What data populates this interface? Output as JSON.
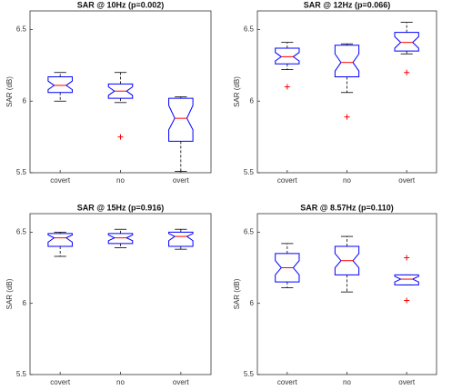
{
  "chart_data": [
    {
      "type": "box",
      "title": "SAR @ 10Hz (p=0.002)",
      "ylabel": "SAR (dB)",
      "categories": [
        "covert",
        "no",
        "overt"
      ],
      "ylim": [
        5.5,
        6.63
      ],
      "yticks": [
        5.5,
        6,
        6.5
      ],
      "box_color": "#0000ff",
      "median_color": "#ff0000",
      "outlier_color": "#ff0000",
      "boxes": [
        {
          "whisker_low": 6.0,
          "q1": 6.06,
          "median": 6.11,
          "q3": 6.17,
          "whisker_high": 6.2,
          "notch_low": 6.08,
          "notch_high": 6.14,
          "outliers": []
        },
        {
          "whisker_low": 5.99,
          "q1": 6.02,
          "median": 6.07,
          "q3": 6.12,
          "whisker_high": 6.2,
          "notch_low": 6.04,
          "notch_high": 6.1,
          "outliers": [
            5.75
          ]
        },
        {
          "whisker_low": 5.51,
          "q1": 5.72,
          "median": 5.88,
          "q3": 6.02,
          "whisker_high": 6.03,
          "notch_low": 5.8,
          "notch_high": 5.97,
          "outliers": []
        }
      ]
    },
    {
      "type": "box",
      "title": "SAR @ 12Hz (p=0.066)",
      "ylabel": "SAR (dB)",
      "categories": [
        "covert",
        "no",
        "overt"
      ],
      "ylim": [
        5.5,
        6.63
      ],
      "yticks": [
        5.5,
        6,
        6.5
      ],
      "box_color": "#0000ff",
      "median_color": "#ff0000",
      "outlier_color": "#ff0000",
      "boxes": [
        {
          "whisker_low": 6.22,
          "q1": 6.26,
          "median": 6.31,
          "q3": 6.37,
          "whisker_high": 6.41,
          "notch_low": 6.28,
          "notch_high": 6.34,
          "outliers": [
            6.1
          ]
        },
        {
          "whisker_low": 6.06,
          "q1": 6.17,
          "median": 6.27,
          "q3": 6.39,
          "whisker_high": 6.4,
          "notch_low": 6.21,
          "notch_high": 6.33,
          "outliers": [
            5.89
          ]
        },
        {
          "whisker_low": 6.33,
          "q1": 6.35,
          "median": 6.41,
          "q3": 6.48,
          "whisker_high": 6.55,
          "notch_low": 6.37,
          "notch_high": 6.45,
          "outliers": [
            6.2
          ]
        }
      ]
    },
    {
      "type": "box",
      "title": "SAR @ 15Hz (p=0.916)",
      "ylabel": "SAR (dB)",
      "categories": [
        "covert",
        "no",
        "overt"
      ],
      "ylim": [
        5.5,
        6.63
      ],
      "yticks": [
        5.5,
        6,
        6.5
      ],
      "box_color": "#0000ff",
      "median_color": "#ff0000",
      "outlier_color": "#ff0000",
      "boxes": [
        {
          "whisker_low": 6.33,
          "q1": 6.4,
          "median": 6.46,
          "q3": 6.49,
          "whisker_high": 6.5,
          "notch_low": 6.43,
          "notch_high": 6.48,
          "outliers": []
        },
        {
          "whisker_low": 6.39,
          "q1": 6.42,
          "median": 6.46,
          "q3": 6.49,
          "whisker_high": 6.52,
          "notch_low": 6.44,
          "notch_high": 6.48,
          "outliers": []
        },
        {
          "whisker_low": 6.38,
          "q1": 6.4,
          "median": 6.47,
          "q3": 6.5,
          "whisker_high": 6.52,
          "notch_low": 6.44,
          "notch_high": 6.49,
          "outliers": []
        }
      ]
    },
    {
      "type": "box",
      "title": "SAR @ 8.57Hz (p=0.110)",
      "ylabel": "SAR (dB)",
      "categories": [
        "covert",
        "no",
        "overt"
      ],
      "ylim": [
        5.5,
        6.63
      ],
      "yticks": [
        5.5,
        6,
        6.5
      ],
      "box_color": "#0000ff",
      "median_color": "#ff0000",
      "outlier_color": "#ff0000",
      "boxes": [
        {
          "whisker_low": 6.11,
          "q1": 6.15,
          "median": 6.25,
          "q3": 6.35,
          "whisker_high": 6.42,
          "notch_low": 6.2,
          "notch_high": 6.3,
          "outliers": []
        },
        {
          "whisker_low": 6.08,
          "q1": 6.2,
          "median": 6.3,
          "q3": 6.4,
          "whisker_high": 6.47,
          "notch_low": 6.25,
          "notch_high": 6.35,
          "outliers": []
        },
        {
          "whisker_low": 6.13,
          "q1": 6.13,
          "median": 6.17,
          "q3": 6.2,
          "whisker_high": 6.2,
          "notch_low": 6.15,
          "notch_high": 6.19,
          "outliers": [
            6.32,
            6.02
          ]
        }
      ]
    }
  ]
}
